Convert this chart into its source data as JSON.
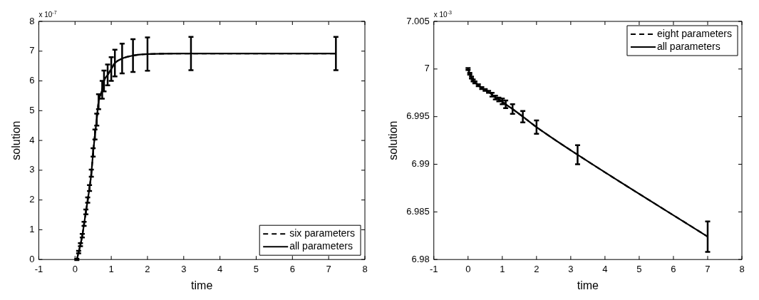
{
  "chart_data": [
    {
      "type": "line",
      "xlabel": "time",
      "ylabel": "solution",
      "annotations": [
        "x 10$^{-7}$"
      ],
      "xlim": [
        -1,
        8
      ],
      "xticks": [
        -1,
        0,
        1,
        2,
        3,
        4,
        5,
        6,
        7,
        8
      ],
      "ylim": [
        0,
        8
      ],
      "yticks": [
        0,
        1,
        2,
        3,
        4,
        5,
        6,
        7,
        8
      ],
      "grid": false,
      "legend": "bottom right",
      "marker": "none",
      "series": [
        {
          "name": "six parameters",
          "color": "#000000",
          "line_style": "dashed",
          "x": [
            0.05,
            0.1,
            0.15,
            0.2,
            0.25,
            0.3,
            0.35,
            0.4,
            0.45,
            0.5,
            0.55,
            0.6,
            0.65,
            0.75,
            0.8,
            0.9,
            1.0,
            1.1,
            1.3,
            1.6,
            2.0,
            3.2,
            7.2
          ],
          "values": [
            0,
            0.25,
            0.5,
            0.8,
            1.2,
            1.6,
            2.0,
            2.4,
            2.9,
            3.6,
            4.2,
            4.7,
            5.3,
            5.7,
            6.0,
            6.2,
            6.4,
            6.6,
            6.75,
            6.85,
            6.9,
            6.92,
            6.92
          ]
        },
        {
          "name": "all parameters",
          "color": "#000000",
          "line_style": "solid",
          "x": [
            0.05,
            0.1,
            0.15,
            0.2,
            0.25,
            0.3,
            0.35,
            0.4,
            0.45,
            0.5,
            0.55,
            0.6,
            0.65,
            0.75,
            0.8,
            0.9,
            1.0,
            1.1,
            1.3,
            1.6,
            2.0,
            3.2,
            7.2
          ],
          "values": [
            0,
            0.25,
            0.5,
            0.8,
            1.2,
            1.6,
            2.0,
            2.4,
            2.9,
            3.6,
            4.2,
            4.7,
            5.3,
            5.7,
            6.0,
            6.2,
            6.4,
            6.6,
            6.75,
            6.85,
            6.9,
            6.92,
            6.92
          ],
          "errors": [
            0.02,
            0.04,
            0.05,
            0.06,
            0.07,
            0.08,
            0.09,
            0.1,
            0.12,
            0.14,
            0.17,
            0.2,
            0.25,
            0.3,
            0.35,
            0.35,
            0.4,
            0.45,
            0.5,
            0.55,
            0.56,
            0.56,
            0.56
          ]
        }
      ]
    },
    {
      "type": "line",
      "xlabel": "time",
      "ylabel": "solution",
      "annotations": [
        "x 10$^{-3}$"
      ],
      "xlim": [
        -1,
        8
      ],
      "xticks": [
        -1,
        0,
        1,
        2,
        3,
        4,
        5,
        6,
        7,
        8
      ],
      "ylim": [
        6.98,
        7.005
      ],
      "yticks": [
        6.98,
        6.985,
        6.99,
        6.995,
        7,
        7.005
      ],
      "grid": false,
      "legend": "top right",
      "marker": "none",
      "series": [
        {
          "name": "eight parameters",
          "color": "#000000",
          "line_style": "dashed",
          "x": [
            0,
            0.05,
            0.1,
            0.15,
            0.2,
            0.3,
            0.4,
            0.5,
            0.6,
            0.7,
            0.8,
            0.9,
            1.0,
            1.1,
            1.3,
            1.6,
            2.0,
            3.2,
            7.0
          ],
          "values": [
            7.0,
            6.9995,
            6.9991,
            6.9988,
            6.9986,
            6.9983,
            6.998,
            6.9978,
            6.9976,
            6.9973,
            6.997,
            6.9968,
            6.9966,
            6.9963,
            6.9958,
            6.995,
            6.9939,
            6.991,
            6.9824
          ]
        },
        {
          "name": "all parameters",
          "color": "#000000",
          "line_style": "solid",
          "x": [
            0,
            0.05,
            0.1,
            0.15,
            0.2,
            0.3,
            0.4,
            0.5,
            0.6,
            0.7,
            0.8,
            0.9,
            1.0,
            1.1,
            1.3,
            1.6,
            2.0,
            3.2,
            7.0
          ],
          "values": [
            7.0,
            6.9995,
            6.9991,
            6.9988,
            6.9986,
            6.9983,
            6.998,
            6.9978,
            6.9976,
            6.9973,
            6.997,
            6.9968,
            6.9966,
            6.9963,
            6.9958,
            6.995,
            6.9939,
            6.991,
            6.9824
          ],
          "errors": [
            0.0001,
            0.0001,
            0.0001,
            0.0001,
            0.0001,
            0.0001,
            0.0001,
            0.0001,
            0.0001,
            0.0002,
            0.0002,
            0.0002,
            0.0003,
            0.0004,
            0.0005,
            0.0006,
            0.0007,
            0.001,
            0.0016
          ]
        }
      ]
    }
  ]
}
